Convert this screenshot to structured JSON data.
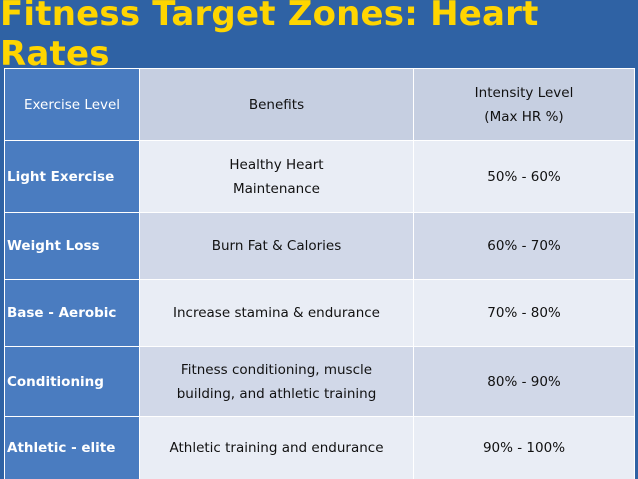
{
  "title": "Fitness Target Zones: Heart Rates",
  "table": {
    "headers": {
      "exercise_level": "Exercise Level",
      "benefits": "Benefits",
      "intensity_line1": "Intensity Level",
      "intensity_line2": "(Max HR %)"
    },
    "rows": [
      {
        "level": "Light Exercise",
        "benefits_line1": "Healthy Heart",
        "benefits_line2": "Maintenance",
        "intensity": "50% - 60%"
      },
      {
        "level": "Weight Loss",
        "benefits_line1": "Burn Fat & Calories",
        "benefits_line2": "",
        "intensity": "60% - 70%"
      },
      {
        "level": "Base - Aerobic",
        "benefits_line1": "Increase stamina & endurance",
        "benefits_line2": "",
        "intensity": "70% - 80%"
      },
      {
        "level": "Conditioning",
        "benefits_line1": "Fitness conditioning, muscle",
        "benefits_line2": "building, and athletic training",
        "intensity": "80% - 90%"
      },
      {
        "level": "Athletic - elite",
        "benefits_line1": "Athletic training and endurance",
        "benefits_line2": "",
        "intensity": "90% - 100%"
      }
    ]
  },
  "colors": {
    "background": "#2f62a4",
    "title": "#ffd500",
    "label_column": "#4a7cc0",
    "header_cells": "#c6cfe1",
    "row_light": "#e9edf5",
    "row_dark": "#d1d8e8"
  }
}
